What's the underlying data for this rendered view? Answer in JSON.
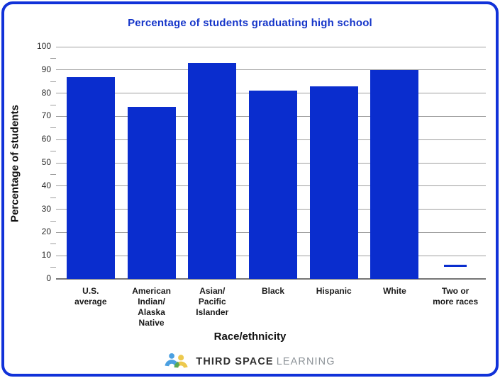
{
  "card": {
    "background": "#FFFFFF",
    "border_color": "#1132D9"
  },
  "chart_data": {
    "type": "bar",
    "title": "Percentage of students graduating high school",
    "title_color": "#1535C9",
    "xlabel": "Race/ethnicity",
    "ylabel": "Percentage of students",
    "categories": [
      "U.S. average",
      "American Indian/Alaska Native",
      "Asian/Pacific Islander",
      "Black",
      "Hispanic",
      "White",
      "Two or more races"
    ],
    "category_label_lines": [
      [
        "U.S.",
        "average"
      ],
      [
        "American",
        "Indian/",
        "Alaska",
        "Native"
      ],
      [
        "Asian/",
        "Pacific",
        "Islander"
      ],
      [
        "Black"
      ],
      [
        "Hispanic"
      ],
      [
        "White"
      ],
      [
        "Two or",
        "more races"
      ]
    ],
    "values": [
      87,
      74,
      93,
      81,
      83,
      90,
      null
    ],
    "no_data_marker": {
      "category": "Two or more races",
      "style": "short horizontal dash",
      "approx_value": 5.5
    },
    "ylim": [
      0,
      100
    ],
    "yticks": [
      0,
      10,
      20,
      30,
      40,
      50,
      60,
      70,
      80,
      90,
      100
    ],
    "grid": "horizontal major lines every 10, minor left ticks every 5",
    "legend": "none",
    "bar_color": "#0A2DCE",
    "gridline_color": "#9E9E9E",
    "axis_line_color": "#757575"
  },
  "footer_logo": {
    "icon": "third-space-learning-logo",
    "text_primary": "THIRD SPACE",
    "text_secondary": "LEARNING",
    "icon_colors": {
      "blue": "#4BA0E1",
      "yellow": "#EDC94E",
      "green": "#58A857"
    }
  }
}
